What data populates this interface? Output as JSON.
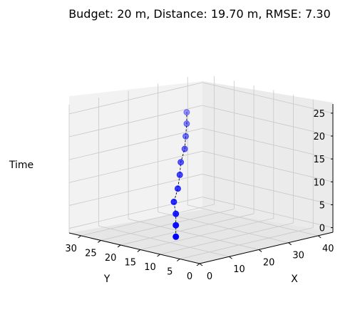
{
  "chart_data": {
    "type": "scatter",
    "title": "Budget: 20 m, Distance: 19.70 m, RMSE: 7.30",
    "xlabel": "X",
    "ylabel": "Y",
    "zlabel": "Time",
    "xlim": [
      0,
      45
    ],
    "ylim": [
      0,
      33
    ],
    "zlim": [
      -1,
      27
    ],
    "x_ticks": [
      "0",
      "10",
      "20",
      "30",
      "40"
    ],
    "y_ticks": [
      "0",
      "5",
      "10",
      "15",
      "20",
      "25",
      "30"
    ],
    "z_ticks": [
      "0",
      "5",
      "10",
      "15",
      "20",
      "25"
    ],
    "grid": true,
    "marker_color": "#0000ff",
    "line_style": "dashed",
    "line_color": "#000000",
    "points": [
      {
        "x": 12,
        "y": 15,
        "t": 0
      },
      {
        "x": 12,
        "y": 15,
        "t": 2.5
      },
      {
        "x": 12,
        "y": 15,
        "t": 5
      },
      {
        "x": 12,
        "y": 15.5,
        "t": 7.5
      },
      {
        "x": 14,
        "y": 16,
        "t": 10
      },
      {
        "x": 16,
        "y": 17,
        "t": 12.5
      },
      {
        "x": 17,
        "y": 17.5,
        "t": 15
      },
      {
        "x": 19,
        "y": 18,
        "t": 17.5
      },
      {
        "x": 20,
        "y": 18.5,
        "t": 20
      },
      {
        "x": 21,
        "y": 19,
        "t": 22.5
      },
      {
        "x": 21,
        "y": 19,
        "t": 25
      }
    ]
  }
}
